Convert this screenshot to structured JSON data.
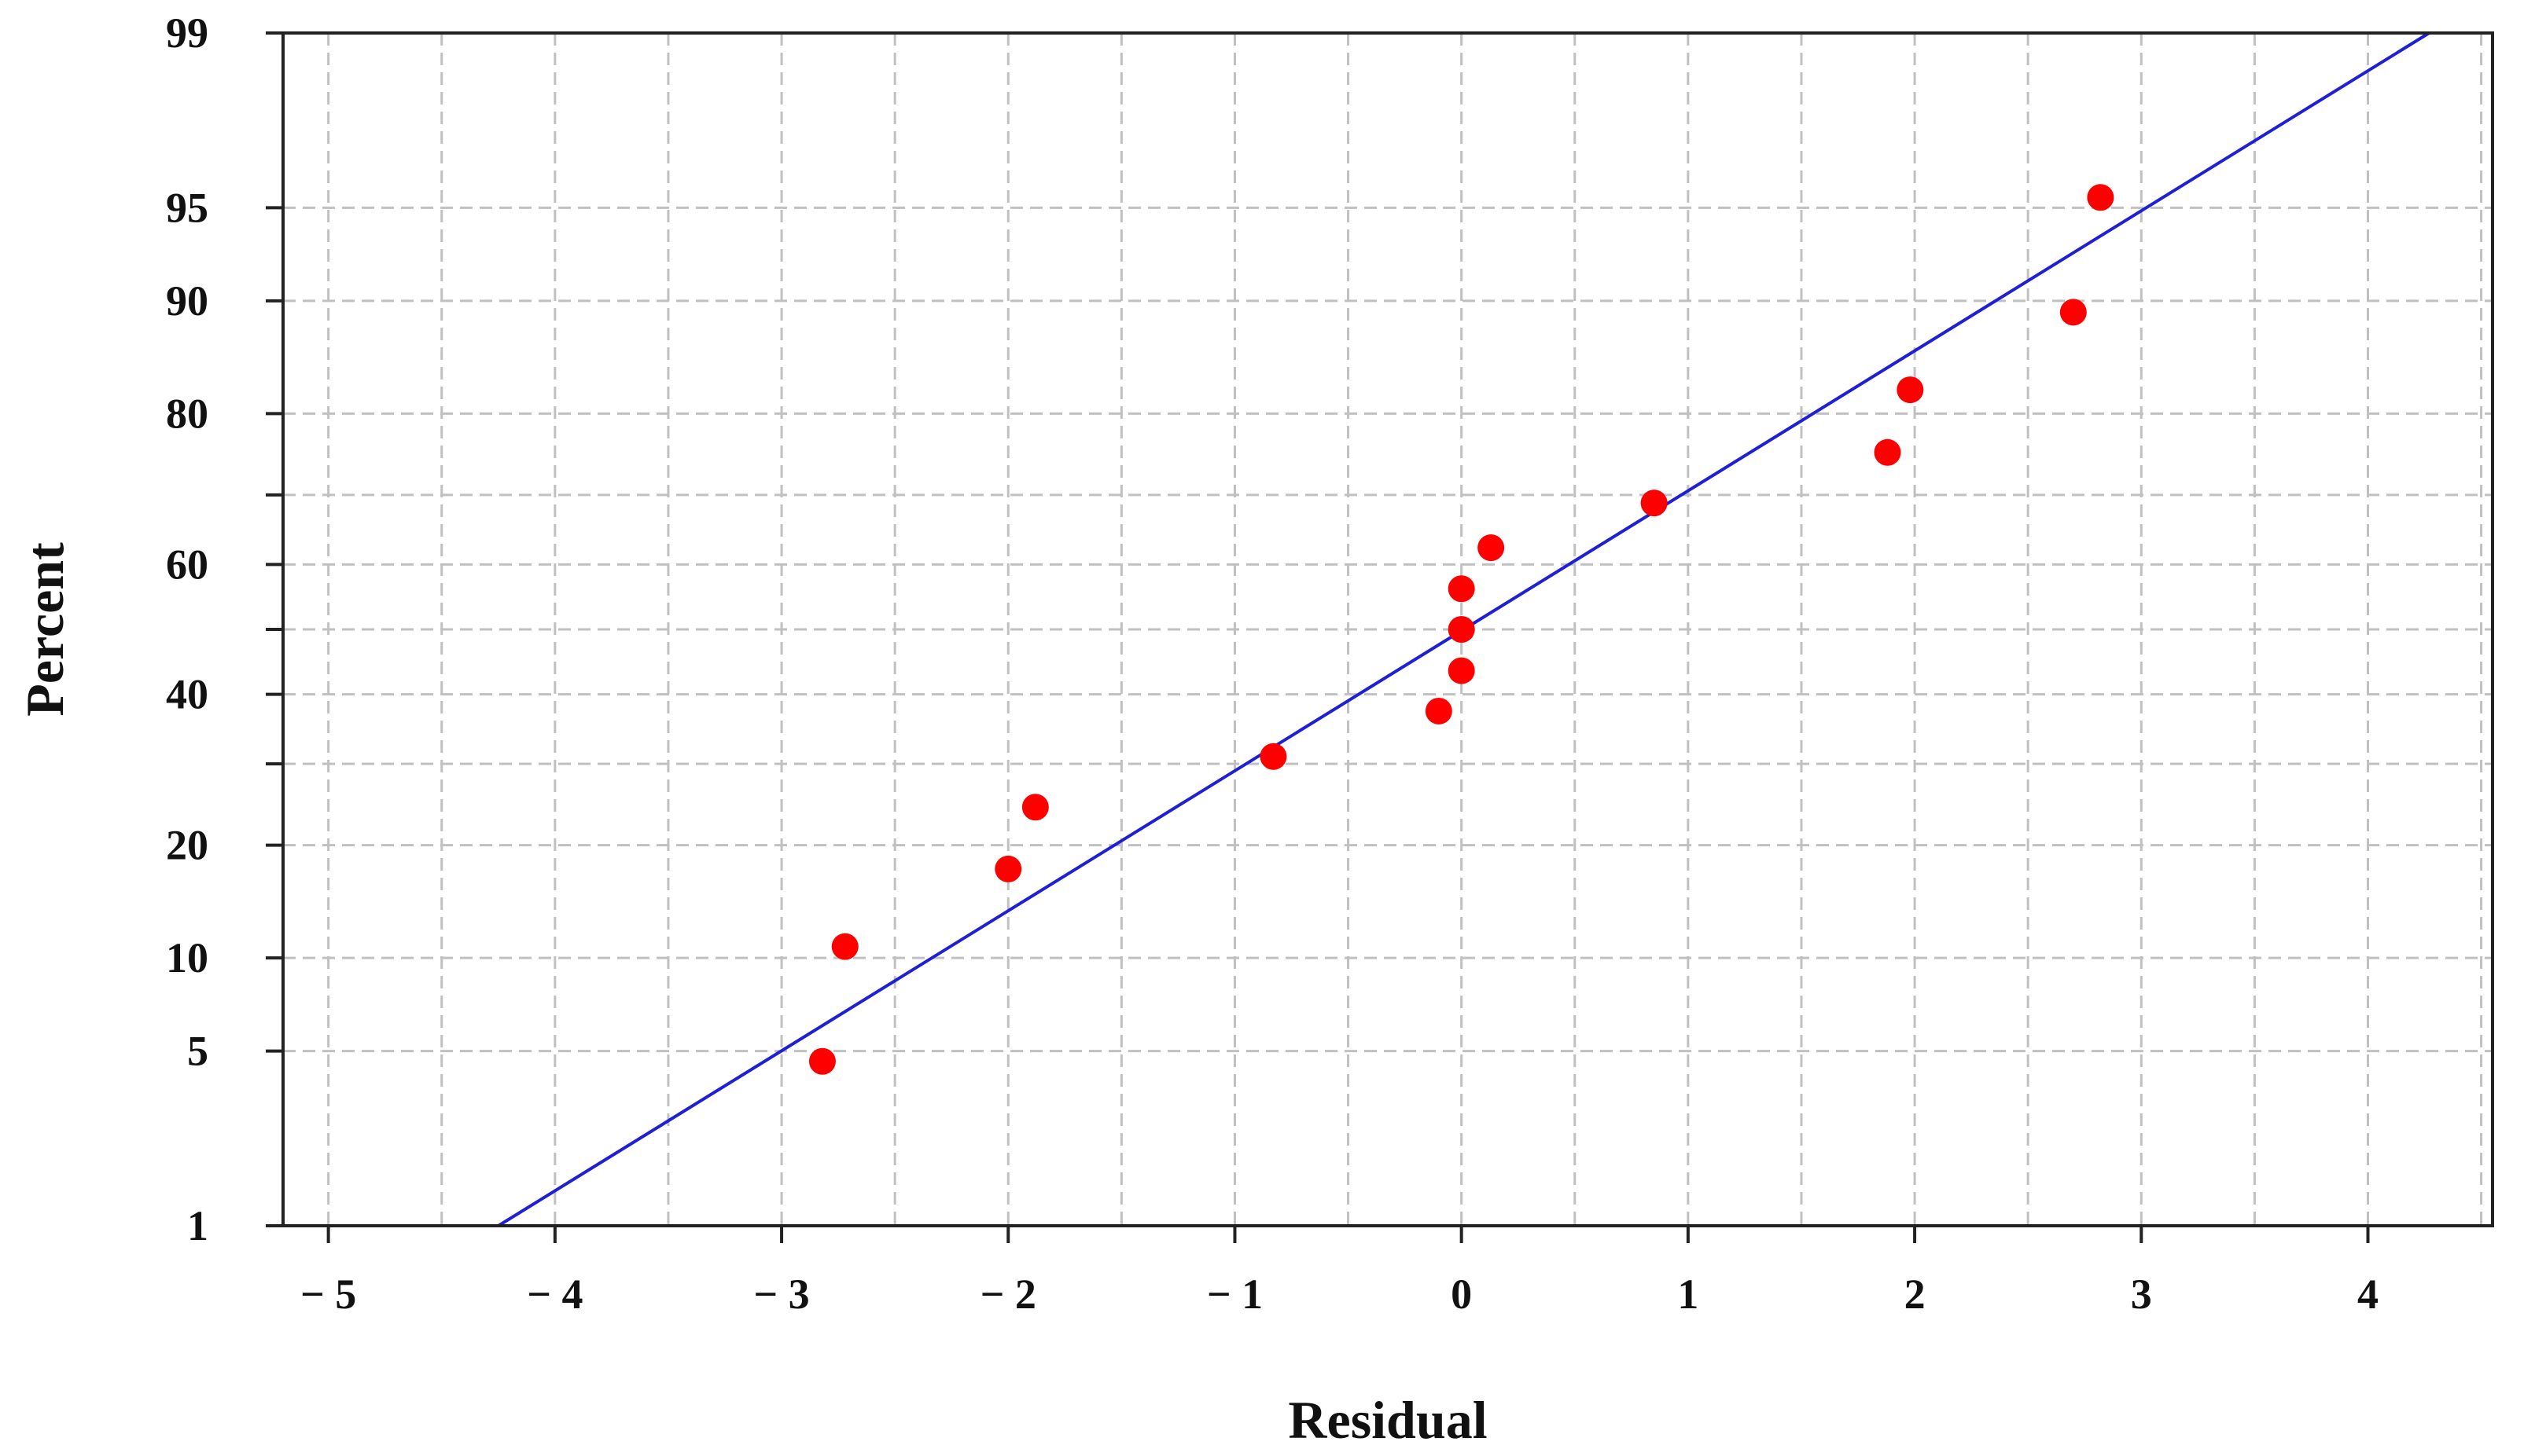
{
  "chart_data": {
    "type": "scatter",
    "title": "",
    "xlabel": "Residual",
    "ylabel": "Percent",
    "y_scale": "normal-probability",
    "xlim": [
      -5.2,
      4.55
    ],
    "ylim": [
      1,
      99
    ],
    "grid": true,
    "x_ticks": [
      -5,
      -4,
      -3,
      -2,
      -1,
      0,
      1,
      2,
      3,
      4
    ],
    "x_tick_labels": [
      "− 5",
      "− 4",
      "− 3",
      "− 2",
      "− 1",
      "0",
      "1",
      "2",
      "3",
      "4"
    ],
    "y_ticks": [
      1,
      5,
      10,
      20,
      30,
      40,
      50,
      60,
      70,
      80,
      90,
      95,
      99
    ],
    "y_tick_labels": [
      "1",
      "5",
      "10",
      "20",
      "",
      "40",
      "",
      "60",
      "",
      "80",
      "90",
      "95",
      "99"
    ],
    "x_minor_grid": [
      -4.5,
      -3.5,
      -2.5,
      -1.5,
      -0.5,
      0.5,
      1.5,
      2.5,
      3.5,
      4.5
    ],
    "points": [
      {
        "x": -2.82,
        "y": 4.6
      },
      {
        "x": -2.72,
        "y": 10.8
      },
      {
        "x": -2.0,
        "y": 17.5
      },
      {
        "x": -1.88,
        "y": 24.4
      },
      {
        "x": -0.83,
        "y": 31.0
      },
      {
        "x": -0.1,
        "y": 37.5
      },
      {
        "x": 0.0,
        "y": 43.6
      },
      {
        "x": 0.0,
        "y": 50.0
      },
      {
        "x": 0.0,
        "y": 56.3
      },
      {
        "x": 0.13,
        "y": 62.5
      },
      {
        "x": 0.85,
        "y": 68.9
      },
      {
        "x": 1.88,
        "y": 75.5
      },
      {
        "x": 1.98,
        "y": 82.5
      },
      {
        "x": 2.7,
        "y": 89.2
      },
      {
        "x": 2.82,
        "y": 95.4
      }
    ],
    "fit_line": {
      "x": [
        -4.25,
        4.27
      ],
      "y": [
        1,
        99
      ]
    },
    "colors": {
      "points": "#ff0000",
      "fit_line": "#1f1fd6",
      "grid": "#c0c0c0",
      "axes": "#222222"
    }
  }
}
